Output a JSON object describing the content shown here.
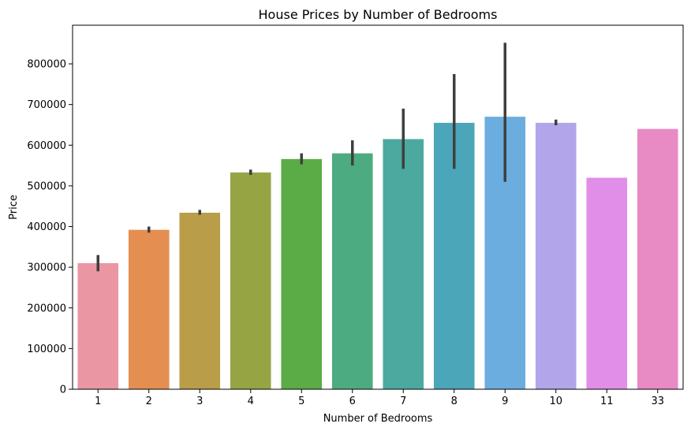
{
  "chart_data": {
    "type": "bar",
    "title": "House Prices by Number of Bedrooms",
    "xlabel": "Number of Bedrooms",
    "ylabel": "Price",
    "categories": [
      "1",
      "2",
      "3",
      "4",
      "5",
      "6",
      "7",
      "8",
      "9",
      "10",
      "11",
      "33"
    ],
    "values": [
      310000,
      392000,
      434000,
      533000,
      566000,
      580000,
      615000,
      655000,
      670000,
      655000,
      520000,
      640000
    ],
    "error_low": [
      290000,
      385000,
      429000,
      527000,
      553000,
      550000,
      542000,
      542000,
      510000,
      649000,
      null,
      null
    ],
    "error_high": [
      330000,
      400000,
      441000,
      540000,
      580000,
      612000,
      690000,
      775000,
      852000,
      663000,
      null,
      null
    ],
    "colors": [
      "#ea96a3",
      "#e48f51",
      "#b99d49",
      "#97a444",
      "#5bab47",
      "#4dab81",
      "#4ca9a0",
      "#4ba6b9",
      "#6badde",
      "#b3a5ea",
      "#e18ee8",
      "#e88ac4"
    ],
    "yticks": [
      0,
      100000,
      200000,
      300000,
      400000,
      500000,
      600000,
      700000,
      800000
    ],
    "ylim": [
      0,
      895000
    ],
    "grid": false,
    "legend": "none"
  }
}
